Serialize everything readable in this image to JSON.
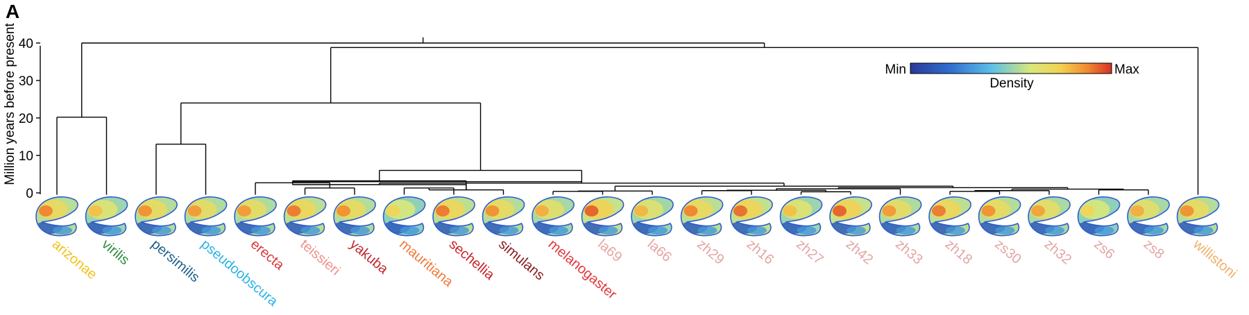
{
  "panel_label": "A",
  "y_axis": {
    "label": "Million years before present",
    "ticks": [
      "0",
      "10",
      "20",
      "30",
      "40"
    ],
    "tick_values": [
      0,
      10,
      20,
      30,
      40
    ],
    "range": [
      0,
      42
    ]
  },
  "legend": {
    "min_label": "Min",
    "max_label": "Max",
    "title": "Density",
    "colors": [
      "#2a3a9a",
      "#2f6fd0",
      "#5bbfe8",
      "#d8e87a",
      "#f4d050",
      "#f08a30",
      "#d8302a"
    ]
  },
  "species": [
    {
      "name": "arizonae",
      "color": "#f2c21b",
      "warmth": 0.65
    },
    {
      "name": "virilis",
      "color": "#2e8b3e",
      "warmth": 0.35
    },
    {
      "name": "persimilis",
      "color": "#1f5f8b",
      "warmth": 0.6
    },
    {
      "name": "pseudoobscura",
      "color": "#29b3e6",
      "warmth": 0.55
    },
    {
      "name": "erecta",
      "color": "#d9383a",
      "warmth": 0.55
    },
    {
      "name": "teissieri",
      "color": "#f0908a",
      "warmth": 0.7
    },
    {
      "name": "yakuba",
      "color": "#c0282d",
      "warmth": 0.6
    },
    {
      "name": "mauritiana",
      "color": "#f07a3a",
      "warmth": 0.2
    },
    {
      "name": "sechellia",
      "color": "#c8202a",
      "warmth": 0.7
    },
    {
      "name": "simulans",
      "color": "#8a1a1a",
      "warmth": 0.6
    },
    {
      "name": "melanogaster",
      "color": "#e0383c",
      "warmth": 0.45
    },
    {
      "name": "la69",
      "color": "#e3a5a2",
      "warmth": 0.8
    },
    {
      "name": "la66",
      "color": "#e3a5a2",
      "warmth": 0.4
    },
    {
      "name": "zh29",
      "color": "#e3a5a2",
      "warmth": 0.65
    },
    {
      "name": "zh16",
      "color": "#e3a5a2",
      "warmth": 0.75
    },
    {
      "name": "zh27",
      "color": "#e3a5a2",
      "warmth": 0.35
    },
    {
      "name": "zh42",
      "color": "#e3a5a2",
      "warmth": 0.8
    },
    {
      "name": "zh33",
      "color": "#e3a5a2",
      "warmth": 0.55
    },
    {
      "name": "zh18",
      "color": "#e3a5a2",
      "warmth": 0.7
    },
    {
      "name": "zs30",
      "color": "#e3a5a2",
      "warmth": 0.6
    },
    {
      "name": "zh32",
      "color": "#e3a5a2",
      "warmth": 0.5
    },
    {
      "name": "zs6",
      "color": "#e3a5a2",
      "warmth": 0.2
    },
    {
      "name": "zs8",
      "color": "#e3a5a2",
      "warmth": 0.45
    },
    {
      "name": "willistoni",
      "color": "#f0b06a",
      "warmth": 0.6
    }
  ]
}
